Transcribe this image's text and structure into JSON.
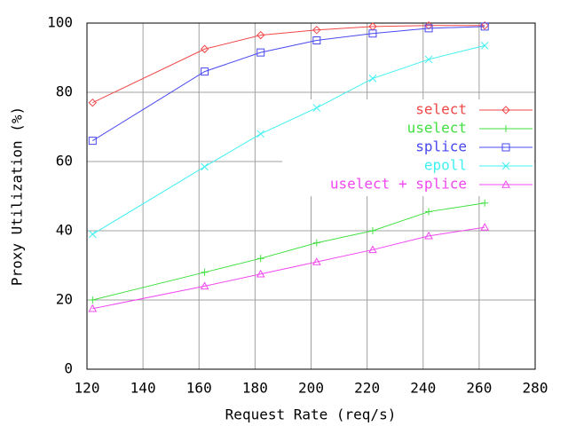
{
  "chart_data": {
    "type": "line",
    "xlabel": "Request Rate (req/s)",
    "ylabel": "Proxy Utilization (%)",
    "x": [
      122,
      162,
      182,
      202,
      222,
      242,
      262
    ],
    "series": [
      {
        "name": "select",
        "color": "#f04848",
        "marker": "diamond",
        "values": [
          77,
          92.5,
          96.5,
          98,
          99,
          99.3,
          99.3
        ]
      },
      {
        "name": "uselect",
        "color": "#40e040",
        "marker": "plus",
        "values": [
          20,
          28,
          32,
          36.5,
          40,
          45.5,
          48
        ]
      },
      {
        "name": "splice",
        "color": "#4848f0",
        "marker": "square",
        "values": [
          66,
          86,
          91.5,
          95,
          97,
          98.5,
          99
        ]
      },
      {
        "name": "epoll",
        "color": "#40f0f0",
        "marker": "cross",
        "values": [
          39,
          58.5,
          68,
          75.5,
          84,
          89.5,
          93.5
        ]
      },
      {
        "name": "uselect + splice",
        "color": "#f048f0",
        "marker": "triangle",
        "values": [
          17.5,
          24,
          27.5,
          31,
          34.5,
          38.5,
          41
        ]
      }
    ],
    "xlim": [
      120,
      280
    ],
    "xticks": [
      120,
      140,
      160,
      180,
      200,
      220,
      240,
      260,
      280
    ],
    "ylim": [
      0,
      100
    ],
    "yticks": [
      0,
      20,
      40,
      60,
      80,
      100
    ],
    "grid": true,
    "legend": "upper-right"
  }
}
